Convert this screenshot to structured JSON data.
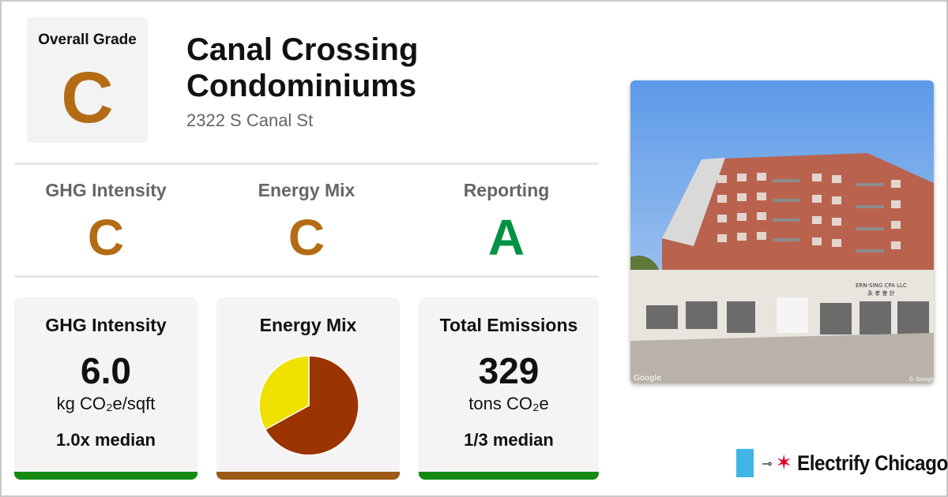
{
  "colors": {
    "grade_c": "#b36b14",
    "grade_a": "#009245",
    "bar_green": "#148a14",
    "bar_brown": "#9c5a16",
    "pie_fossil": "#9b3400",
    "pie_clean": "#f0e000"
  },
  "overall": {
    "label": "Overall Grade",
    "grade": "C"
  },
  "building": {
    "name": "Canal Crossing Condominiums",
    "address": "2322 S Canal St"
  },
  "subgrades": [
    {
      "label": "GHG Intensity",
      "grade": "C"
    },
    {
      "label": "Energy Mix",
      "grade": "C"
    },
    {
      "label": "Reporting",
      "grade": "A"
    }
  ],
  "cards": {
    "ghg": {
      "title": "GHG Intensity",
      "value": "6.0",
      "unit": "kg CO₂e/sqft",
      "median": "1.0x median"
    },
    "energy_mix": {
      "title": "Energy Mix",
      "fossil_fraction": 0.67,
      "clean_fraction": 0.33
    },
    "emissions": {
      "title": "Total Emissions",
      "value": "329",
      "unit": "tons CO₂e",
      "median": "1/3 median"
    }
  },
  "photo": {
    "watermark_left": "Google",
    "watermark_right": "© Google",
    "sign_text": "ERN-SING CPA LLC",
    "sign_text_2": "永 孝 會 計"
  },
  "logo": {
    "plug_icon": "plug-icon",
    "star_icon": "chicago-star-icon",
    "text": "Electrify Chicago"
  }
}
